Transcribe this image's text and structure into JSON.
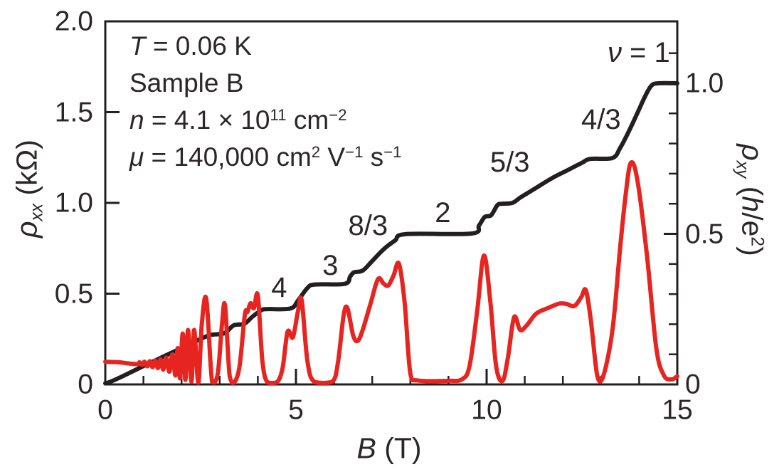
{
  "figure": {
    "background": "#ffffff",
    "text_color": "#2b2728",
    "frame_color": "#231f20"
  },
  "chart_data": {
    "type": "line",
    "title": "",
    "x_axis": {
      "label_segments": [
        {
          "t": "B",
          "i": true
        },
        {
          "t": " (T)"
        }
      ],
      "range": [
        0,
        15
      ],
      "major_ticks": [
        0,
        5,
        10,
        15
      ],
      "major_tick_labels": [
        "0",
        "5",
        "10",
        "15"
      ],
      "minor_ticks": [
        1,
        2,
        3,
        4,
        6,
        7,
        8,
        9,
        11,
        12,
        13,
        14
      ]
    },
    "y_left_axis": {
      "label_segments": [
        {
          "t": "ρ",
          "i": true
        },
        {
          "t": "xx",
          "i": true,
          "sub": true
        },
        {
          "t": " (kΩ)"
        }
      ],
      "range": [
        0,
        2.0
      ],
      "major_ticks": [
        0,
        0.5,
        1.0,
        1.5,
        2.0
      ],
      "major_tick_labels": [
        "0",
        "0.5",
        "1.0",
        "1.5",
        "2.0"
      ]
    },
    "y_right_axis": {
      "label_segments": [
        {
          "t": "ρ",
          "i": true
        },
        {
          "t": "xy",
          "i": true,
          "sub": true
        },
        {
          "t": " ("
        },
        {
          "t": "h",
          "i": true
        },
        {
          "t": "/e"
        },
        {
          "t": "2",
          "sup": true
        },
        {
          "t": ")"
        }
      ],
      "range_shown": [
        0,
        1.206
      ],
      "major_ticks": [
        0,
        0.5,
        1.0
      ],
      "major_tick_labels": [
        "0",
        "0.5",
        "1.0"
      ],
      "minor_ticks": [
        0.1,
        0.2,
        0.3,
        0.4,
        0.6,
        0.7,
        0.8,
        0.9,
        1.1
      ]
    },
    "series": [
      {
        "name": "rho_xy",
        "axis": "right",
        "color": "#231f20",
        "units": "h/e^2",
        "points": [
          [
            0,
            0
          ],
          [
            0.5,
            0.03
          ],
          [
            1.0,
            0.061
          ],
          [
            1.5,
            0.091
          ],
          [
            2.0,
            0.121
          ],
          [
            2.3,
            0.139
          ],
          [
            2.6,
            0.157
          ],
          [
            2.78,
            0.165
          ],
          [
            3.1,
            0.169
          ],
          [
            3.24,
            0.182
          ],
          [
            3.38,
            0.197
          ],
          [
            3.65,
            0.202
          ],
          [
            3.85,
            0.224
          ],
          [
            4.05,
            0.243
          ],
          [
            4.2,
            0.25
          ],
          [
            4.85,
            0.252
          ],
          [
            5.05,
            0.278
          ],
          [
            5.3,
            0.32
          ],
          [
            5.5,
            0.332
          ],
          [
            6.28,
            0.334
          ],
          [
            6.42,
            0.358
          ],
          [
            6.52,
            0.372
          ],
          [
            6.75,
            0.378
          ],
          [
            7.0,
            0.41
          ],
          [
            7.3,
            0.449
          ],
          [
            7.6,
            0.478
          ],
          [
            7.88,
            0.499
          ],
          [
            9.6,
            0.501
          ],
          [
            9.8,
            0.528
          ],
          [
            9.95,
            0.556
          ],
          [
            10.12,
            0.562
          ],
          [
            10.28,
            0.595
          ],
          [
            10.4,
            0.6
          ],
          [
            10.68,
            0.603
          ],
          [
            10.9,
            0.622
          ],
          [
            11.3,
            0.653
          ],
          [
            11.7,
            0.684
          ],
          [
            12.1,
            0.71
          ],
          [
            12.5,
            0.736
          ],
          [
            12.72,
            0.749
          ],
          [
            13.3,
            0.752
          ],
          [
            13.5,
            0.785
          ],
          [
            13.72,
            0.838
          ],
          [
            13.95,
            0.9
          ],
          [
            14.15,
            0.955
          ],
          [
            14.32,
            0.992
          ],
          [
            14.5,
            1.0
          ],
          [
            15,
            1.0
          ]
        ]
      },
      {
        "name": "rho_xx",
        "axis": "left",
        "color": "#e62420",
        "units": "kOhm",
        "points": [
          [
            0,
            0.125
          ],
          [
            0.35,
            0.122
          ],
          [
            0.65,
            0.115
          ],
          [
            0.85,
            0.112
          ],
          [
            0.9,
            0.122
          ],
          [
            0.96,
            0.108
          ],
          [
            1.03,
            0.125
          ],
          [
            1.1,
            0.1
          ],
          [
            1.17,
            0.128
          ],
          [
            1.24,
            0.095
          ],
          [
            1.31,
            0.132
          ],
          [
            1.38,
            0.09
          ],
          [
            1.45,
            0.138
          ],
          [
            1.52,
            0.082
          ],
          [
            1.6,
            0.148
          ],
          [
            1.68,
            0.07
          ],
          [
            1.76,
            0.165
          ],
          [
            1.84,
            0.05
          ],
          [
            1.9,
            0.2
          ],
          [
            1.96,
            0.035
          ],
          [
            2.03,
            0.28
          ],
          [
            2.1,
            0.025
          ],
          [
            2.17,
            0.3
          ],
          [
            2.26,
            0.015
          ],
          [
            2.33,
            0.3
          ],
          [
            2.44,
            0.01
          ],
          [
            2.53,
            0.33
          ],
          [
            2.65,
            0.47
          ],
          [
            2.8,
            0.015
          ],
          [
            2.95,
            0.06
          ],
          [
            3.06,
            0.33
          ],
          [
            3.14,
            0.435
          ],
          [
            3.26,
            0.05
          ],
          [
            3.38,
            0.012
          ],
          [
            3.52,
            0.1
          ],
          [
            3.66,
            0.385
          ],
          [
            3.73,
            0.4
          ],
          [
            3.81,
            0.447
          ],
          [
            3.9,
            0.42
          ],
          [
            4.0,
            0.49
          ],
          [
            4.12,
            0.13
          ],
          [
            4.25,
            0.012
          ],
          [
            4.5,
            0.012
          ],
          [
            4.65,
            0.09
          ],
          [
            4.78,
            0.29
          ],
          [
            4.92,
            0.26
          ],
          [
            5.05,
            0.4
          ],
          [
            5.15,
            0.465
          ],
          [
            5.3,
            0.13
          ],
          [
            5.48,
            0.015
          ],
          [
            5.95,
            0.015
          ],
          [
            6.1,
            0.12
          ],
          [
            6.25,
            0.38
          ],
          [
            6.35,
            0.42
          ],
          [
            6.5,
            0.27
          ],
          [
            6.62,
            0.24
          ],
          [
            6.75,
            0.3
          ],
          [
            6.95,
            0.44
          ],
          [
            7.15,
            0.58
          ],
          [
            7.3,
            0.555
          ],
          [
            7.42,
            0.545
          ],
          [
            7.56,
            0.6
          ],
          [
            7.7,
            0.665
          ],
          [
            7.85,
            0.45
          ],
          [
            8.0,
            0.06
          ],
          [
            8.2,
            0.022
          ],
          [
            9.0,
            0.02
          ],
          [
            9.35,
            0.028
          ],
          [
            9.55,
            0.1
          ],
          [
            9.75,
            0.4
          ],
          [
            9.93,
            0.71
          ],
          [
            10.1,
            0.45
          ],
          [
            10.25,
            0.1
          ],
          [
            10.42,
            0.02
          ],
          [
            10.56,
            0.15
          ],
          [
            10.72,
            0.37
          ],
          [
            10.88,
            0.3
          ],
          [
            11.05,
            0.325
          ],
          [
            11.3,
            0.39
          ],
          [
            11.6,
            0.42
          ],
          [
            11.9,
            0.445
          ],
          [
            12.1,
            0.443
          ],
          [
            12.3,
            0.432
          ],
          [
            12.48,
            0.48
          ],
          [
            12.6,
            0.52
          ],
          [
            12.73,
            0.36
          ],
          [
            12.9,
            0.05
          ],
          [
            13.05,
            0.04
          ],
          [
            13.3,
            0.3
          ],
          [
            13.5,
            0.75
          ],
          [
            13.65,
            1.05
          ],
          [
            13.78,
            1.22
          ],
          [
            13.95,
            1.13
          ],
          [
            14.2,
            0.72
          ],
          [
            14.45,
            0.2
          ],
          [
            14.65,
            0.05
          ],
          [
            14.85,
            0.028
          ],
          [
            15,
            0.045
          ]
        ]
      }
    ],
    "plateau_labels": [
      {
        "name": "filling-factor-4",
        "segments": [
          {
            "t": "4"
          }
        ],
        "B": 4.56,
        "rho_xy": 0.322
      },
      {
        "name": "filling-factor-3",
        "segments": [
          {
            "t": "3"
          }
        ],
        "B": 5.9,
        "rho_xy": 0.395
      },
      {
        "name": "filling-factor-8-3",
        "segments": [
          {
            "t": "8/3"
          }
        ],
        "B": 6.89,
        "rho_xy": 0.527
      },
      {
        "name": "filling-factor-2",
        "segments": [
          {
            "t": "2"
          }
        ],
        "B": 8.85,
        "rho_xy": 0.57
      },
      {
        "name": "filling-factor-5-3",
        "segments": [
          {
            "t": "5/3"
          }
        ],
        "B": 10.61,
        "rho_xy": 0.738
      },
      {
        "name": "filling-factor-4-3",
        "segments": [
          {
            "t": "4/3"
          }
        ],
        "B": 13.0,
        "rho_xy": 0.879
      },
      {
        "name": "filling-factor-1",
        "segments": [
          {
            "t": "ν",
            "i": true
          },
          {
            "t": " = 1"
          }
        ],
        "B": 13.99,
        "rho_xy": 1.102
      }
    ],
    "annotations": [
      {
        "name": "temperature",
        "segments": [
          {
            "t": "T",
            "i": true
          },
          {
            "t": " = 0.06 K"
          }
        ]
      },
      {
        "name": "sample",
        "segments": [
          {
            "t": "Sample B"
          }
        ]
      },
      {
        "name": "density",
        "segments": [
          {
            "t": "n",
            "i": true
          },
          {
            "t": " = 4.1 × 10"
          },
          {
            "t": "11",
            "sup": true
          },
          {
            "t": " cm"
          },
          {
            "t": "−2",
            "sup": true
          }
        ]
      },
      {
        "name": "mobility",
        "segments": [
          {
            "t": "μ",
            "i": true
          },
          {
            "t": " = 140,000 cm"
          },
          {
            "t": "2",
            "sup": true
          },
          {
            "t": " V"
          },
          {
            "t": "−1",
            "sup": true
          },
          {
            "t": " s"
          },
          {
            "t": "−1",
            "sup": true
          }
        ]
      }
    ]
  }
}
